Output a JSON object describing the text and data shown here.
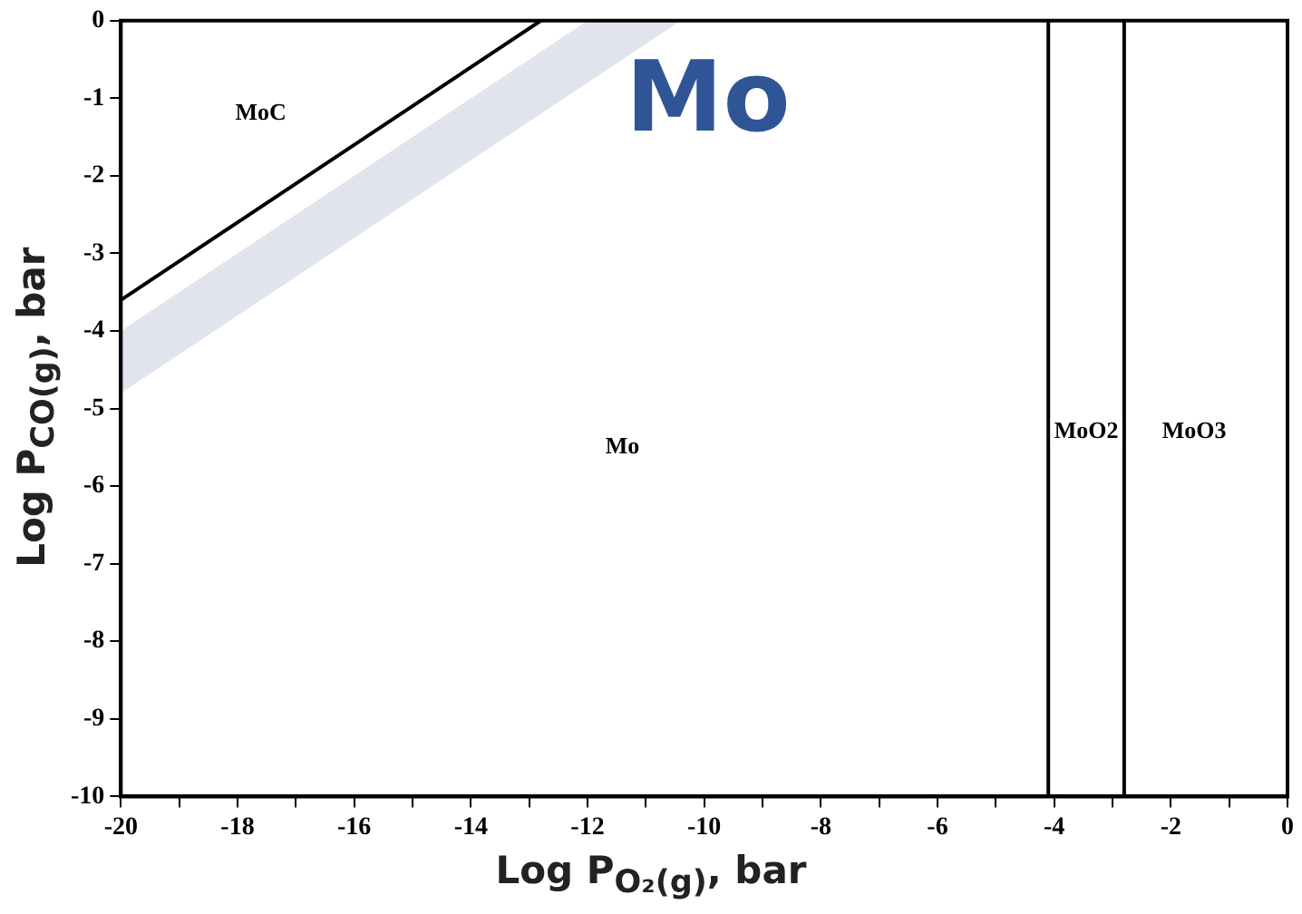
{
  "chart_data": {
    "type": "line",
    "title": "Mo",
    "xlabel": "Log P$_{O₂(g)}$, bar",
    "ylabel": "Log P$_{CO(g)}$, bar",
    "xlim": [
      -20,
      0
    ],
    "ylim": [
      -10,
      0
    ],
    "xticks": [
      -20,
      {
        "value": -19,
        "label": null
      },
      -18,
      {
        "value": -17,
        "label": null
      },
      -16,
      {
        "value": -15,
        "label": null
      },
      -14,
      {
        "value": -13,
        "label": null
      },
      -12,
      {
        "value": -11,
        "label": null
      },
      -10,
      {
        "value": -9,
        "label": null
      },
      -8,
      {
        "value": -7,
        "label": null
      },
      -6,
      {
        "value": -5,
        "label": null
      },
      -4,
      {
        "value": -3,
        "label": null
      },
      -2,
      {
        "value": -1,
        "label": null
      },
      0
    ],
    "yticks": [
      -10,
      -9,
      -8,
      -7,
      -6,
      -5,
      -4,
      -3,
      -2,
      -1,
      0
    ],
    "grid": false,
    "legend": false,
    "marker": "none",
    "line_style": "solid",
    "series": [
      {
        "color": "#000000",
        "x": [
          -20,
          -12.8
        ],
        "values": [
          -3.6,
          0
        ]
      },
      {
        "color": "#000000",
        "x": [
          -4.1,
          -4.1
        ],
        "values": [
          -10,
          0
        ]
      },
      {
        "color": "#000000",
        "x": [
          -2.8,
          -2.8
        ],
        "values": [
          -10,
          0
        ]
      },
      {
        "color": "#e1e4ec",
        "x": [
          -20,
          -12,
          -10.4
        ],
        "values": [
          null,
          null,
          null
        ],
        "lower": [
          -4.8,
          -0.8,
          0
        ],
        "upper": [
          -4.0,
          0,
          0
        ]
      }
    ],
    "annotations": [
      {
        "text": "MoC",
        "x": -17.6,
        "y": -1.2
      },
      {
        "text": "Mo",
        "x": -11.4,
        "y": -5.5
      },
      {
        "text": "MoO2",
        "x": -3.45,
        "y": -5.3
      },
      {
        "text": "MoO3",
        "x": -1.6,
        "y": -5.3
      }
    ]
  }
}
